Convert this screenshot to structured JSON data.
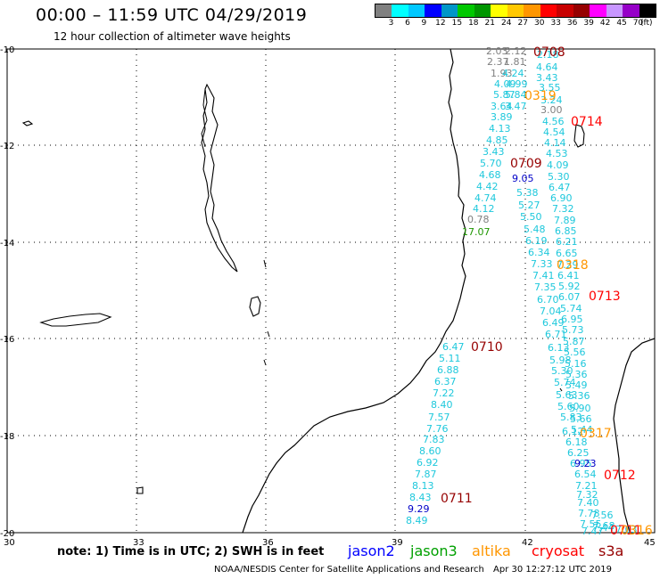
{
  "title": "00:00 – 11:59 UTC 04/29/2019",
  "subtitle": "12 hour collection of altimeter wave heights",
  "scale": {
    "colors": [
      "#808080",
      "#00ffff",
      "#00c8ff",
      "#0000ff",
      "#0096c8",
      "#00c800",
      "#009600",
      "#ffff00",
      "#ffc800",
      "#ff9600",
      "#ff0000",
      "#c80000",
      "#960000",
      "#ff00ff",
      "#c896ff",
      "#9600c8",
      "#000000"
    ],
    "labels": [
      "3",
      "6",
      "9",
      "12",
      "15",
      "18",
      "21",
      "24",
      "27",
      "30",
      "33",
      "36",
      "39",
      "42",
      "45",
      "70",
      "(ft)"
    ]
  },
  "axes": {
    "lat_labels": [
      "-10",
      "-12",
      "-14",
      "-16",
      "-18",
      "-20"
    ],
    "lon_labels": [
      "30",
      "33",
      "36",
      "39",
      "42",
      "45"
    ]
  },
  "points": [
    {
      "t": "2.03",
      "c": "#808080"
    },
    {
      "t": "2.12",
      "c": "#808080"
    },
    {
      "t": "2.37",
      "c": "#808080"
    },
    {
      "t": "1.81",
      "c": "#808080"
    },
    {
      "t": "1.93",
      "c": "#808080"
    },
    {
      "t": "4.24",
      "c": "#1ec8dc"
    },
    {
      "t": "4.09",
      "c": "#1ec8dc"
    },
    {
      "t": "4.99",
      "c": "#1ec8dc"
    },
    {
      "t": "5.87",
      "c": "#1ec8dc"
    },
    {
      "t": "5.84",
      "c": "#1ec8dc"
    },
    {
      "t": "3.64",
      "c": "#1ec8dc"
    },
    {
      "t": "3.47",
      "c": "#1ec8dc"
    },
    {
      "t": "3.89",
      "c": "#1ec8dc"
    },
    {
      "t": "4.13",
      "c": "#1ec8dc"
    },
    {
      "t": "4.85",
      "c": "#1ec8dc"
    },
    {
      "t": "3.43",
      "c": "#1ec8dc"
    },
    {
      "t": "5.70",
      "c": "#1ec8dc"
    },
    {
      "t": "4.68",
      "c": "#1ec8dc"
    },
    {
      "t": "4.42",
      "c": "#1ec8dc"
    },
    {
      "t": "4.74",
      "c": "#1ec8dc"
    },
    {
      "t": "4.12",
      "c": "#1ec8dc"
    },
    {
      "t": "0.78",
      "c": "#808080"
    },
    {
      "t": "17.07",
      "c": "#1e9600"
    },
    {
      "t": "2.18",
      "c": "#1ec8dc"
    },
    {
      "t": "4.64",
      "c": "#1ec8dc"
    },
    {
      "t": "3.43",
      "c": "#1ec8dc"
    },
    {
      "t": "3.55",
      "c": "#1ec8dc"
    },
    {
      "t": "3.24",
      "c": "#1ec8dc"
    },
    {
      "t": "3.00",
      "c": "#808080"
    },
    {
      "t": "4.56",
      "c": "#1ec8dc"
    },
    {
      "t": "4.54",
      "c": "#1ec8dc"
    },
    {
      "t": "4.14",
      "c": "#1ec8dc"
    },
    {
      "t": "4.53",
      "c": "#1ec8dc"
    },
    {
      "t": "4.09",
      "c": "#1ec8dc"
    },
    {
      "t": "5.30",
      "c": "#1ec8dc"
    },
    {
      "t": "6.47",
      "c": "#1ec8dc"
    },
    {
      "t": "6.90",
      "c": "#1ec8dc"
    },
    {
      "t": "7.32",
      "c": "#1ec8dc"
    },
    {
      "t": "7.89",
      "c": "#1ec8dc"
    },
    {
      "t": "6.85",
      "c": "#1ec8dc"
    },
    {
      "t": "6.21",
      "c": "#1ec8dc"
    },
    {
      "t": "6.65",
      "c": "#1ec8dc"
    },
    {
      "t": "7.29",
      "c": "#1ec8dc"
    },
    {
      "t": "6.41",
      "c": "#1ec8dc"
    },
    {
      "t": "5.92",
      "c": "#1ec8dc"
    },
    {
      "t": "6.07",
      "c": "#1ec8dc"
    },
    {
      "t": "5.74",
      "c": "#1ec8dc"
    },
    {
      "t": "6.95",
      "c": "#1ec8dc"
    },
    {
      "t": "5.73",
      "c": "#1ec8dc"
    },
    {
      "t": "5.87",
      "c": "#1ec8dc"
    },
    {
      "t": "5.56",
      "c": "#1ec8dc"
    },
    {
      "t": "5.16",
      "c": "#1ec8dc"
    },
    {
      "t": "5.36",
      "c": "#1ec8dc"
    },
    {
      "t": "5.49",
      "c": "#1ec8dc"
    },
    {
      "t": "5.36",
      "c": "#1ec8dc"
    },
    {
      "t": "5.90",
      "c": "#1ec8dc"
    },
    {
      "t": "5.66",
      "c": "#1ec8dc"
    },
    {
      "t": "5.44",
      "c": "#1ec8dc"
    },
    {
      "t": "9.05",
      "c": "#0000c8"
    },
    {
      "t": "5.38",
      "c": "#1ec8dc"
    },
    {
      "t": "5.27",
      "c": "#1ec8dc"
    },
    {
      "t": "5.50",
      "c": "#1ec8dc"
    },
    {
      "t": "5.48",
      "c": "#1ec8dc"
    },
    {
      "t": "6.19",
      "c": "#1ec8dc"
    },
    {
      "t": "6.34",
      "c": "#1ec8dc"
    },
    {
      "t": "7.33",
      "c": "#1ec8dc"
    },
    {
      "t": "7.41",
      "c": "#1ec8dc"
    },
    {
      "t": "7.35",
      "c": "#1ec8dc"
    },
    {
      "t": "6.70",
      "c": "#1ec8dc"
    },
    {
      "t": "7.04",
      "c": "#1ec8dc"
    },
    {
      "t": "6.49",
      "c": "#1ec8dc"
    },
    {
      "t": "6.71",
      "c": "#1ec8dc"
    },
    {
      "t": "6.13",
      "c": "#1ec8dc"
    },
    {
      "t": "5.98",
      "c": "#1ec8dc"
    },
    {
      "t": "5.30",
      "c": "#1ec8dc"
    },
    {
      "t": "5.74",
      "c": "#1ec8dc"
    },
    {
      "t": "5.63",
      "c": "#1ec8dc"
    },
    {
      "t": "5.60",
      "c": "#1ec8dc"
    },
    {
      "t": "5.83",
      "c": "#1ec8dc"
    },
    {
      "t": "6.12",
      "c": "#1ec8dc"
    },
    {
      "t": "6.18",
      "c": "#1ec8dc"
    },
    {
      "t": "6.25",
      "c": "#1ec8dc"
    },
    {
      "t": "6.95",
      "c": "#1ec8dc"
    },
    {
      "t": "9.23",
      "c": "#0000c8"
    },
    {
      "t": "6.54",
      "c": "#1ec8dc"
    },
    {
      "t": "7.21",
      "c": "#1ec8dc"
    },
    {
      "t": "7.32",
      "c": "#1ec8dc"
    },
    {
      "t": "7.40",
      "c": "#1ec8dc"
    },
    {
      "t": "7.78",
      "c": "#1ec8dc"
    },
    {
      "t": "7.55",
      "c": "#1ec8dc"
    },
    {
      "t": "7.47",
      "c": "#1ec8dc"
    },
    {
      "t": "7.56",
      "c": "#1ec8dc"
    },
    {
      "t": "7.44",
      "c": "#1ec8dc"
    },
    {
      "t": "7.68",
      "c": "#1ec8dc"
    },
    {
      "t": "7.03",
      "c": "#1ec8dc"
    },
    {
      "t": "6.47",
      "c": "#1ec8dc"
    },
    {
      "t": "5.11",
      "c": "#1ec8dc"
    },
    {
      "t": "6.88",
      "c": "#1ec8dc"
    },
    {
      "t": "6.37",
      "c": "#1ec8dc"
    },
    {
      "t": "7.22",
      "c": "#1ec8dc"
    },
    {
      "t": "8.40",
      "c": "#1ec8dc"
    },
    {
      "t": "7.57",
      "c": "#1ec8dc"
    },
    {
      "t": "7.76",
      "c": "#1ec8dc"
    },
    {
      "t": "7.83",
      "c": "#1ec8dc"
    },
    {
      "t": "8.60",
      "c": "#1ec8dc"
    },
    {
      "t": "6.92",
      "c": "#1ec8dc"
    },
    {
      "t": "7.87",
      "c": "#1ec8dc"
    },
    {
      "t": "8.13",
      "c": "#1ec8dc"
    },
    {
      "t": "8.43",
      "c": "#1ec8dc"
    },
    {
      "t": "9.29",
      "c": "#0000c8"
    },
    {
      "t": "8.49",
      "c": "#1ec8dc"
    }
  ],
  "passes": [
    {
      "t": "0708",
      "c": "#960000"
    },
    {
      "t": "0319",
      "c": "#ff9600"
    },
    {
      "t": "0714",
      "c": "#ff0000"
    },
    {
      "t": "0709",
      "c": "#960000"
    },
    {
      "t": "0318",
      "c": "#ff9600"
    },
    {
      "t": "0713",
      "c": "#ff0000"
    },
    {
      "t": "0710",
      "c": "#960000"
    },
    {
      "t": "0317",
      "c": "#ff9600"
    },
    {
      "t": "0712",
      "c": "#ff0000"
    },
    {
      "t": "0711",
      "c": "#960000"
    },
    {
      "t": "0711",
      "c": "#ff0000"
    },
    {
      "t": "0316",
      "c": "#ff9600"
    }
  ],
  "note": "note: 1) Time is in UTC; 2) SWH is in feet",
  "satellites": [
    {
      "name": "jason2",
      "color": "#0000ff"
    },
    {
      "name": "jason3",
      "color": "#00a000"
    },
    {
      "name": "altika",
      "color": "#ff9600"
    },
    {
      "name": "cryosat",
      "color": "#ff0000"
    },
    {
      "name": "s3a",
      "color": "#960000"
    }
  ],
  "credit": "NOAA/NESDIS Center for Satellite Applications and Research",
  "timestamp": "Apr 30 12:27:12 UTC 2019"
}
